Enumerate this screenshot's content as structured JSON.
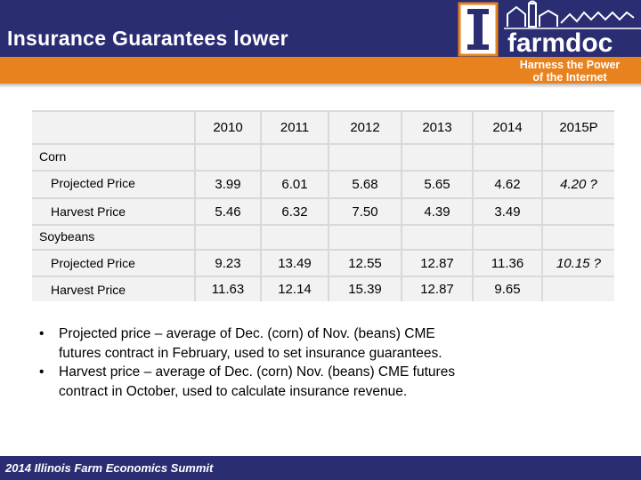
{
  "header": {
    "title": "Insurance Guarantees lower",
    "logo_text": "farmdoc",
    "tagline_line1": "Harness the Power",
    "tagline_line2": "of the Internet"
  },
  "table": {
    "years": [
      "2010",
      "2011",
      "2012",
      "2013",
      "2014",
      "2015P"
    ],
    "groups": [
      {
        "name": "Corn",
        "rows": [
          {
            "label": "Projected Price",
            "values": [
              "3.99",
              "6.01",
              "5.68",
              "5.65",
              "4.62",
              "4.20 ?"
            ]
          },
          {
            "label": "Harvest Price",
            "values": [
              "5.46",
              "6.32",
              "7.50",
              "4.39",
              "3.49",
              ""
            ]
          }
        ]
      },
      {
        "name": "Soybeans",
        "rows": [
          {
            "label": "Projected Price",
            "values": [
              "9.23",
              "13.49",
              "12.55",
              "12.87",
              "11.36",
              "10.15 ?"
            ]
          },
          {
            "label": "Harvest Price",
            "values": [
              "11.63",
              "12.14",
              "15.39",
              "12.87",
              "9.65",
              ""
            ]
          }
        ]
      }
    ]
  },
  "bullets": [
    {
      "line1": "Projected price – average of Dec. (corn) of Nov. (beans) CME",
      "line2": "futures contract in February, used to set insurance guarantees."
    },
    {
      "line1": "Harvest price – average of Dec. (corn) Nov. (beans) CME futures",
      "line2": "contract in October, used to calculate insurance revenue."
    }
  ],
  "footer": {
    "text": "2014 Illinois Farm Economics Summit"
  },
  "colors": {
    "navy": "#2a2d72",
    "orange": "#e8821e",
    "table_cell": "#f2f2f2",
    "table_gap": "#d9d9d9"
  }
}
